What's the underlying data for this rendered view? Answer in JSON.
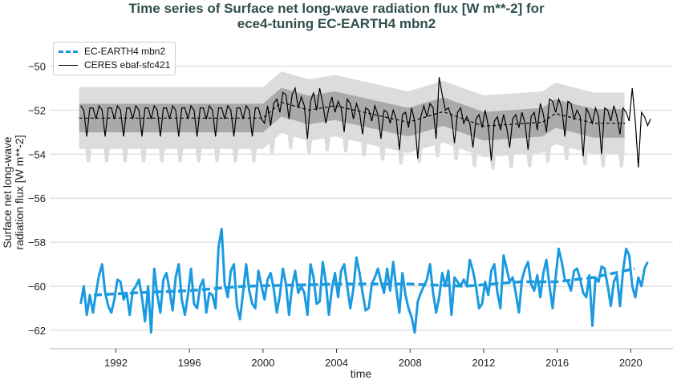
{
  "chart_data": {
    "type": "line",
    "title": "Time series of Surface net long-wave radiation flux [W m**-2] for\nece4-tuning EC-EARTH4 mbn2",
    "title_lines": [
      "Time series of Surface net long-wave radiation flux [W m**-2] for",
      "ece4-tuning EC-EARTH4 mbn2"
    ],
    "xlabel": "time",
    "ylabel_lines": [
      "Surface net long-wave",
      "radiation flux [W m**-2]"
    ],
    "xlim": [
      1988.4,
      2022.3
    ],
    "ylim": [
      -62.84,
      -49.0
    ],
    "xticks": [
      1992,
      1996,
      2000,
      2004,
      2008,
      2012,
      2016,
      2020
    ],
    "yticks": [
      -50,
      -52,
      -54,
      -56,
      -58,
      -60,
      -62
    ],
    "ytick_labels": [
      "−50",
      "−52",
      "−54",
      "−56",
      "−58",
      "−60",
      "−62"
    ],
    "grid": "horizontal",
    "legend_position": "top-left",
    "colors": {
      "model": "#1b9ae0",
      "obs": "#000000",
      "band_inner": "#a9a9a9",
      "band_outer": "#dcdcdc",
      "grid": "#d3d3d3"
    },
    "series": [
      {
        "name": "EC-EARTH4 mbn2",
        "style": "dashed-thick-blue",
        "sampling": "6 per year from 1990",
        "start_year": 1990,
        "per_year": 6,
        "values": [
          -60.8,
          -60.0,
          -61.3,
          -60.4,
          -61.2,
          -60.3,
          -59.5,
          -59.0,
          -60.3,
          -60.9,
          -61.2,
          -60.6,
          -59.7,
          -59.8,
          -60.6,
          -60.3,
          -61.3,
          -60.2,
          -60.0,
          -59.7,
          -60.5,
          -61.6,
          -60.0,
          -62.1,
          -59.2,
          -60.4,
          -61.2,
          -59.7,
          -59.4,
          -60.2,
          -61.1,
          -59.6,
          -59.0,
          -60.6,
          -61.3,
          -60.4,
          -59.2,
          -60.8,
          -61.0,
          -60.0,
          -59.7,
          -61.2,
          -60.3,
          -60.4,
          -61.0,
          -58.2,
          -57.4,
          -59.9,
          -60.5,
          -59.3,
          -59.0,
          -60.9,
          -61.5,
          -60.3,
          -59.0,
          -60.2,
          -60.8,
          -61.0,
          -59.3,
          -60.0,
          -60.6,
          -59.7,
          -59.4,
          -60.1,
          -61.2,
          -60.4,
          -59.2,
          -59.9,
          -61.3,
          -60.0,
          -59.3,
          -60.3,
          -60.0,
          -60.3,
          -61.3,
          -59.0,
          -59.6,
          -60.8,
          -60.7,
          -58.9,
          -59.8,
          -61.3,
          -60.1,
          -59.4,
          -60.5,
          -59.3,
          -59.0,
          -60.0,
          -61.0,
          -60.1,
          -58.7,
          -59.4,
          -60.3,
          -61.1,
          -61.0,
          -59.9,
          -59.6,
          -59.2,
          -59.8,
          -60.3,
          -59.2,
          -60.2,
          -58.9,
          -60.1,
          -61.2,
          -59.4,
          -60.4,
          -61.0,
          -61.4,
          -62.1,
          -60.7,
          -60.3,
          -60.0,
          -59.7,
          -59.0,
          -60.3,
          -61.2,
          -60.5,
          -59.4,
          -60.0,
          -59.3,
          -61.3,
          -59.6,
          -59.8,
          -60.0,
          -59.7,
          -60.0,
          -58.8,
          -59.3,
          -60.0,
          -61.0,
          -60.8,
          -59.8,
          -60.4,
          -59.3,
          -59.0,
          -60.3,
          -61.0,
          -58.6,
          -59.2,
          -59.8,
          -59.6,
          -60.3,
          -61.2,
          -59.7,
          -59.2,
          -58.9,
          -59.9,
          -60.2,
          -59.5,
          -60.5,
          -59.4,
          -58.8,
          -60.0,
          -61.0,
          -59.6,
          -58.3,
          -58.9,
          -59.7,
          -59.8,
          -60.2,
          -59.3,
          -59.2,
          -59.7,
          -60.3,
          -60.5,
          -59.5,
          -61.8,
          -59.6,
          -59.8,
          -59.1,
          -59.2,
          -60.0,
          -60.9,
          -59.8,
          -59.5,
          -60.9,
          -59.3,
          -58.3,
          -58.6,
          -60.0,
          -60.5,
          -59.6,
          -60.0,
          -59.2,
          -58.9
        ],
        "running_mean": [
          [
            1990.8,
            -60.4
          ],
          [
            1993,
            -60.3
          ],
          [
            1996,
            -60.2
          ],
          [
            1999,
            -60.0
          ],
          [
            2004,
            -59.9
          ],
          [
            2008,
            -59.9
          ],
          [
            2011,
            -60.0
          ],
          [
            2014,
            -59.8
          ],
          [
            2016,
            -59.8
          ],
          [
            2018,
            -59.6
          ],
          [
            2020.2,
            -59.2
          ]
        ]
      },
      {
        "name": "CERES ebaf-sfc421",
        "style": "solid-thin-black",
        "start_year": 1990,
        "per_year": 6,
        "values": [
          -51.8,
          -52.0,
          -53.2,
          -51.9,
          -51.9,
          -52.4,
          -51.8,
          -52.0,
          -53.2,
          -51.9,
          -51.9,
          -52.4,
          -51.8,
          -52.0,
          -53.2,
          -51.9,
          -51.9,
          -52.4,
          -51.8,
          -52.0,
          -53.2,
          -51.9,
          -51.9,
          -52.4,
          -51.8,
          -52.0,
          -53.2,
          -51.9,
          -51.9,
          -52.4,
          -51.8,
          -52.0,
          -53.2,
          -51.9,
          -51.9,
          -52.4,
          -51.8,
          -52.0,
          -53.2,
          -51.9,
          -51.9,
          -52.4,
          -51.8,
          -52.0,
          -53.2,
          -51.9,
          -51.9,
          -52.4,
          -51.8,
          -52.0,
          -53.2,
          -51.9,
          -51.9,
          -52.4,
          -51.8,
          -52.0,
          -53.2,
          -51.9,
          -51.9,
          -52.4,
          -52.6,
          -51.8,
          -52.7,
          -51.7,
          -51.5,
          -52.1,
          -51.2,
          -51.3,
          -52.4,
          -51.3,
          -51.0,
          -51.9,
          -51.4,
          -51.8,
          -53.3,
          -51.6,
          -51.2,
          -52.0,
          -51.0,
          -51.7,
          -52.6,
          -51.9,
          -51.4,
          -52.1,
          -51.6,
          -51.9,
          -53.0,
          -51.5,
          -51.7,
          -52.4,
          -51.7,
          -52.1,
          -53.1,
          -51.9,
          -52.0,
          -52.5,
          -51.8,
          -52.2,
          -53.3,
          -52.0,
          -52.1,
          -52.6,
          -52.0,
          -52.4,
          -53.8,
          -52.2,
          -52.1,
          -52.8,
          -51.9,
          -52.5,
          -54.2,
          -52.3,
          -51.8,
          -52.3,
          -51.7,
          -51.9,
          -53.3,
          -50.5,
          -51.3,
          -52.0,
          -51.9,
          -52.3,
          -53.5,
          -52.1,
          -51.9,
          -52.6,
          -52.3,
          -52.6,
          -53.7,
          -52.4,
          -52.2,
          -52.8,
          -52.0,
          -52.7,
          -54.3,
          -52.5,
          -52.3,
          -52.9,
          -52.2,
          -52.8,
          -53.7,
          -52.4,
          -52.2,
          -52.8,
          -52.1,
          -52.6,
          -53.8,
          -52.3,
          -52.1,
          -52.9,
          -51.7,
          -52.2,
          -53.0,
          -51.5,
          -51.6,
          -52.1,
          -51.5,
          -51.9,
          -53.2,
          -51.6,
          -51.7,
          -52.4,
          -52.0,
          -52.3,
          -54.1,
          -51.9,
          -52.2,
          -52.6,
          -51.9,
          -52.3,
          -54.0,
          -51.9,
          -52.0,
          -52.5,
          -51.8,
          -52.3,
          -53.1,
          -51.9,
          -52.1,
          -52.5,
          -51.0,
          -52.5,
          -54.6,
          -52.1,
          -52.3,
          -52.7,
          -52.4
        ],
        "running_mean": [
          [
            1990,
            -52.36
          ],
          [
            2000,
            -52.36
          ],
          [
            2001,
            -51.64
          ],
          [
            2002.5,
            -52.0
          ],
          [
            2003.9,
            -51.8
          ],
          [
            2007.9,
            -52.55
          ],
          [
            2009.8,
            -52.07
          ],
          [
            2012,
            -52.73
          ],
          [
            2015.2,
            -52.55
          ],
          [
            2015.9,
            -52.15
          ],
          [
            2018,
            -52.6
          ],
          [
            2019.7,
            -52.6
          ]
        ],
        "band_inner_halfwidth": 0.65,
        "band_outer_halfwidth": 1.4
      }
    ]
  }
}
